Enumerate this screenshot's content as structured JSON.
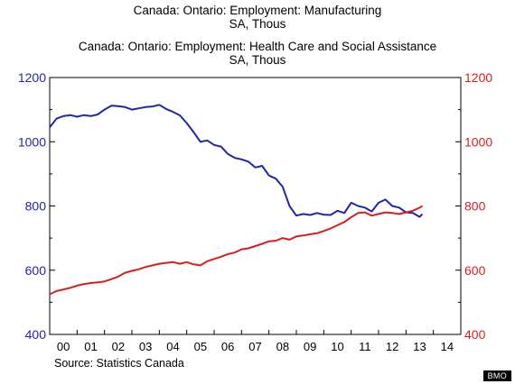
{
  "chart_data": {
    "type": "line",
    "titles": [
      {
        "line1": "Canada: Ontario: Employment: Manufacturing",
        "line2": "SA, Thous",
        "color": "#1f27a8"
      },
      {
        "line1": "Canada: Ontario: Employment: Health Care and Social Assistance",
        "line2": "SA, Thous",
        "color": "#d81e1e"
      }
    ],
    "x_ticks": [
      "00",
      "01",
      "02",
      "03",
      "04",
      "05",
      "06",
      "07",
      "08",
      "09",
      "10",
      "11",
      "12",
      "13",
      "14"
    ],
    "xlim": [
      2000,
      2015
    ],
    "left_axis": {
      "ticks": [
        "1200",
        "1000",
        "800",
        "600",
        "400"
      ],
      "ylim": [
        400,
        1200
      ],
      "color": "#1f27a8"
    },
    "right_axis": {
      "ticks": [
        "1200",
        "1000",
        "800",
        "600",
        "400"
      ],
      "ylim": [
        400,
        1200
      ],
      "color": "#d81e1e"
    },
    "series": [
      {
        "name": "Canada: Ontario: Employment: Manufacturing",
        "axis": "left",
        "color": "#1f27a8",
        "x": [
          2000.0,
          2000.25,
          2000.5,
          2000.75,
          2001.0,
          2001.25,
          2001.5,
          2001.75,
          2002.0,
          2002.25,
          2002.5,
          2002.75,
          2003.0,
          2003.25,
          2003.5,
          2003.75,
          2004.0,
          2004.25,
          2004.5,
          2004.75,
          2005.0,
          2005.25,
          2005.5,
          2005.75,
          2006.0,
          2006.25,
          2006.5,
          2006.75,
          2007.0,
          2007.25,
          2007.5,
          2007.75,
          2008.0,
          2008.25,
          2008.5,
          2008.75,
          2009.0,
          2009.25,
          2009.5,
          2009.75,
          2010.0,
          2010.25,
          2010.5,
          2010.75,
          2011.0,
          2011.25,
          2011.5,
          2011.75,
          2012.0,
          2012.25,
          2012.5,
          2012.75,
          2013.0,
          2013.25,
          2013.5,
          2013.6
        ],
        "values": [
          1045,
          1072,
          1080,
          1083,
          1078,
          1083,
          1080,
          1085,
          1100,
          1112,
          1111,
          1108,
          1100,
          1104,
          1108,
          1110,
          1115,
          1102,
          1093,
          1082,
          1058,
          1030,
          1000,
          1004,
          990,
          985,
          962,
          950,
          945,
          938,
          920,
          925,
          895,
          885,
          860,
          800,
          770,
          775,
          772,
          778,
          773,
          772,
          785,
          778,
          810,
          800,
          795,
          783,
          810,
          820,
          800,
          795,
          780,
          778,
          766,
          775
        ]
      },
      {
        "name": "Canada: Ontario: Employment: Health Care and Social Assistance",
        "axis": "right",
        "color": "#d81e1e",
        "x": [
          2000.0,
          2000.25,
          2000.5,
          2000.75,
          2001.0,
          2001.25,
          2001.5,
          2001.75,
          2002.0,
          2002.25,
          2002.5,
          2002.75,
          2003.0,
          2003.25,
          2003.5,
          2003.75,
          2004.0,
          2004.25,
          2004.5,
          2004.75,
          2005.0,
          2005.25,
          2005.5,
          2005.75,
          2006.0,
          2006.25,
          2006.5,
          2006.75,
          2007.0,
          2007.25,
          2007.5,
          2007.75,
          2008.0,
          2008.25,
          2008.5,
          2008.75,
          2009.0,
          2009.25,
          2009.5,
          2009.75,
          2010.0,
          2010.25,
          2010.5,
          2010.75,
          2011.0,
          2011.25,
          2011.5,
          2011.75,
          2012.0,
          2012.25,
          2012.5,
          2012.75,
          2013.0,
          2013.25,
          2013.5,
          2013.6
        ],
        "values": [
          525,
          535,
          540,
          545,
          552,
          557,
          560,
          562,
          565,
          572,
          580,
          592,
          598,
          603,
          610,
          615,
          620,
          623,
          625,
          620,
          625,
          618,
          615,
          628,
          635,
          642,
          650,
          655,
          665,
          668,
          675,
          682,
          690,
          692,
          700,
          695,
          705,
          708,
          712,
          715,
          722,
          730,
          740,
          750,
          765,
          778,
          780,
          770,
          775,
          780,
          778,
          775,
          780,
          785,
          795,
          800
        ]
      }
    ],
    "source": "Source:  Statistics Canada",
    "watermark": "BMO"
  }
}
